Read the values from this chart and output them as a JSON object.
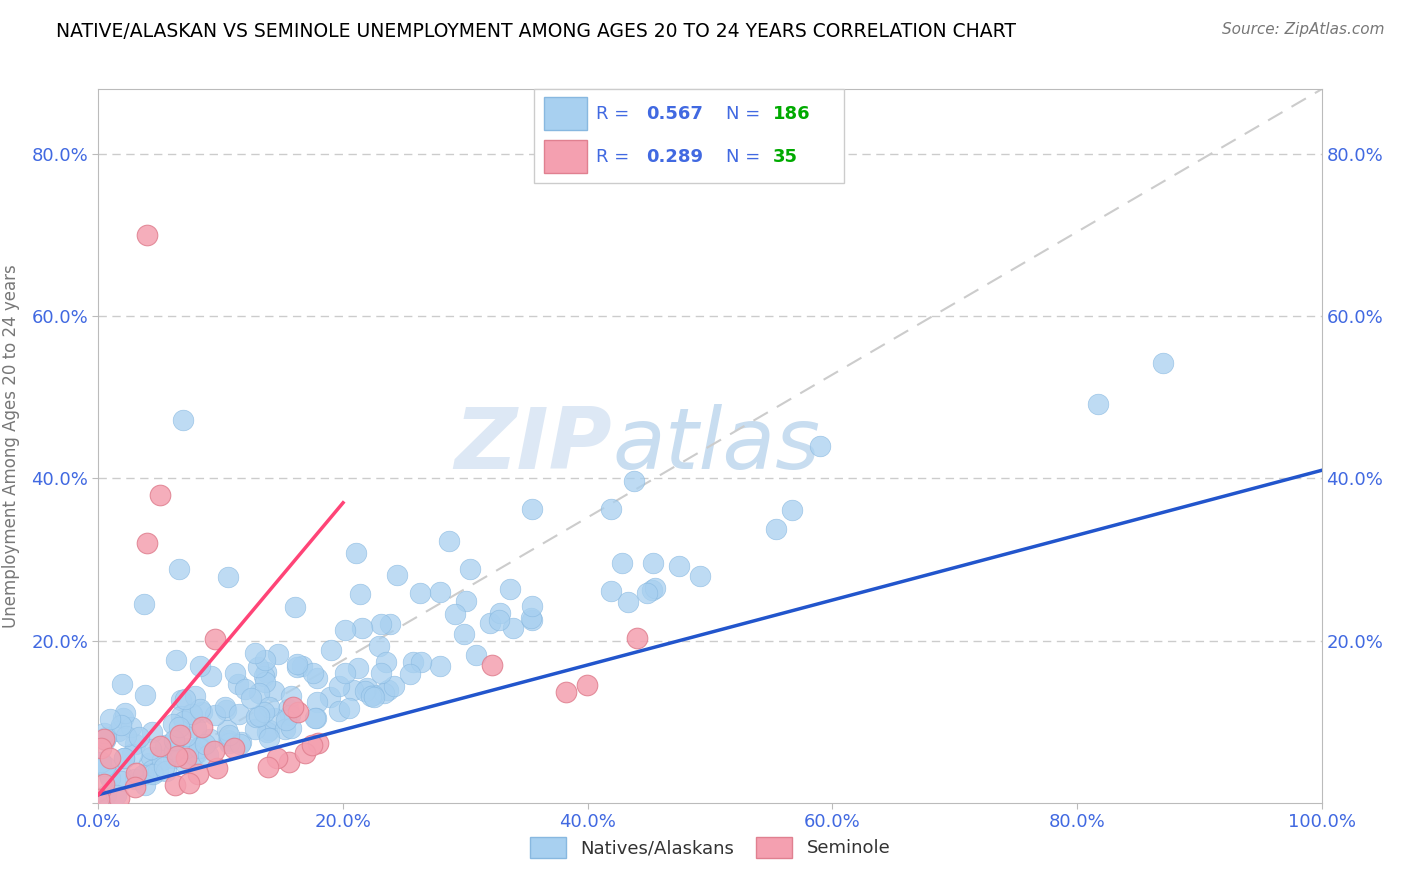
{
  "title": "NATIVE/ALASKAN VS SEMINOLE UNEMPLOYMENT AMONG AGES 20 TO 24 YEARS CORRELATION CHART",
  "source": "Source: ZipAtlas.com",
  "ylabel": "Unemployment Among Ages 20 to 24 years",
  "xlim": [
    0,
    1.0
  ],
  "ylim": [
    0,
    0.88
  ],
  "native_color": "#A8D0F0",
  "native_edge": "#88B8E0",
  "seminole_color": "#F4A0B0",
  "seminole_edge": "#E08090",
  "native_R": 0.567,
  "native_N": 186,
  "seminole_R": 0.289,
  "seminole_N": 35,
  "legend_label_color": "#4169E1",
  "legend_N_color": "#00AA00",
  "watermark_color": "#e0e8f0",
  "background_color": "#ffffff",
  "grid_color": "#cccccc",
  "title_color": "#000000",
  "axis_label_color": "#777777",
  "tick_label_color": "#4169E1",
  "blue_line_color": "#2255CC",
  "pink_line_color": "#FF4477",
  "diag_line_color": "#cccccc"
}
